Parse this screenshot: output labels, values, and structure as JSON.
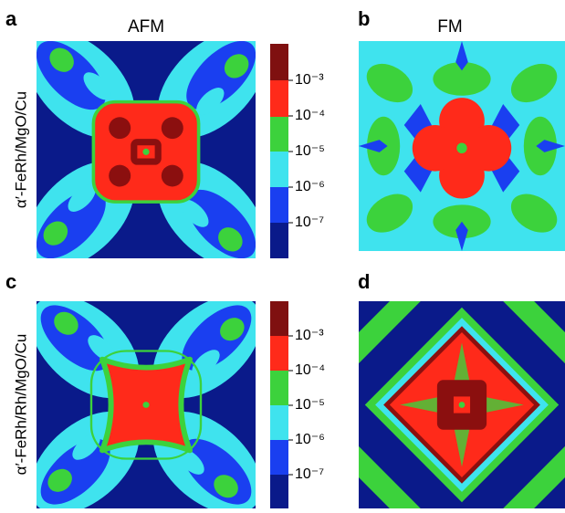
{
  "panels": [
    {
      "letter": "a",
      "title": "AFM",
      "ylabel": "α′-FeRh/MgO/Cu",
      "colorbar": [
        "10⁻³",
        "10⁻⁴",
        "10⁻⁵",
        "10⁻⁶",
        "10⁻⁷"
      ]
    },
    {
      "letter": "b",
      "title": "FM"
    },
    {
      "letter": "c",
      "ylabel": "α′-FeRh/Rh/MgO/Cu",
      "colorbar": [
        "10⁻³",
        "10⁻⁴",
        "10⁻⁵",
        "10⁻⁶",
        "10⁻⁷"
      ]
    },
    {
      "letter": "d"
    }
  ]
}
